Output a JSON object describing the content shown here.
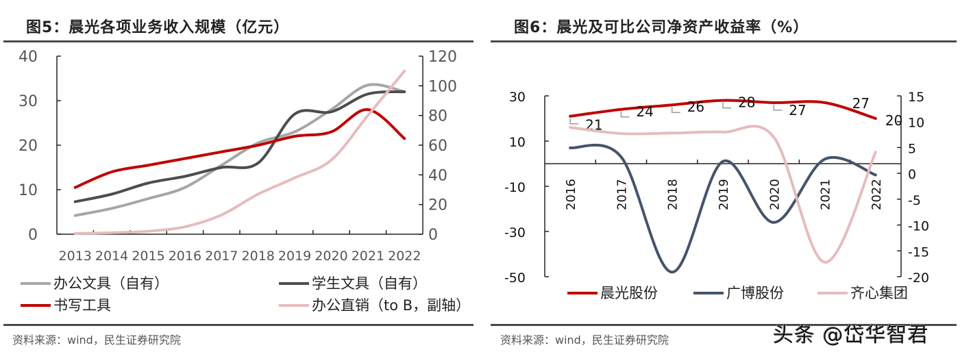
{
  "chart_data": [
    {
      "type": "line",
      "title": "图5：晨光各项业务收入规模（亿元）",
      "categories": [
        "2013",
        "2014",
        "2015",
        "2016",
        "2017",
        "2018",
        "2019",
        "2020",
        "2021",
        "2022"
      ],
      "y_left": {
        "range": [
          0,
          40
        ],
        "ticks": [
          "0",
          "10",
          "20",
          "30",
          "40"
        ]
      },
      "y_right": {
        "range": [
          0,
          120
        ],
        "ticks": [
          "0",
          "20",
          "40",
          "60",
          "80",
          "100",
          "120"
        ]
      },
      "grid": false,
      "legend_position": "bottom",
      "series": [
        {
          "name": "办公文具（自有）",
          "axis": "left",
          "color": "#a6a6a6",
          "values": [
            4.2,
            5.8,
            8.0,
            10.5,
            15.5,
            20.5,
            23.0,
            28.0,
            33.5,
            32.0
          ]
        },
        {
          "name": "学生文具（自有）",
          "axis": "left",
          "color": "#4d4d4d",
          "values": [
            7.3,
            9.0,
            11.5,
            13.0,
            15.0,
            16.0,
            27.0,
            27.5,
            31.5,
            32.0
          ]
        },
        {
          "name": "书写工具",
          "axis": "left",
          "color": "#c00000",
          "values": [
            10.5,
            14.0,
            15.5,
            17.0,
            18.5,
            20.0,
            22.0,
            23.0,
            28.0,
            21.5
          ]
        },
        {
          "name": "办公直销（to B，副轴）",
          "axis": "right",
          "color": "#e6bcbc",
          "values": [
            0.5,
            1.0,
            2.0,
            5.0,
            13.0,
            27.0,
            38.0,
            50.0,
            80.0,
            110.0
          ]
        }
      ],
      "source": "资料来源：wind，民生证券研究院"
    },
    {
      "type": "line",
      "title": "图6：晨光及可比公司净资产收益率（%）",
      "categories": [
        "2016",
        "2017",
        "2018",
        "2019",
        "2020",
        "2021",
        "2022"
      ],
      "y_left": {
        "range": [
          -50,
          30
        ],
        "ticks": [
          "-50",
          "-30",
          "-10",
          "10",
          "30"
        ]
      },
      "y_right": {
        "range": [
          -20,
          15
        ],
        "ticks": [
          "-20",
          "-15",
          "-10",
          "-5",
          "0",
          "5",
          "10",
          "15"
        ]
      },
      "grid": false,
      "legend_position": "bottom",
      "series": [
        {
          "name": "晨光股份",
          "axis": "left",
          "color": "#c00000",
          "values": [
            21,
            24,
            26,
            28,
            27,
            27,
            20
          ],
          "data_labels": [
            "21",
            "24",
            "26",
            "28",
            "27",
            "27",
            "20"
          ]
        },
        {
          "name": "广博股份",
          "axis": "left",
          "color": "#44546a",
          "values": [
            7,
            3,
            -48,
            1,
            -26,
            2,
            -5
          ]
        },
        {
          "name": "齐心集团",
          "axis": "right",
          "color": "#e6bcbc",
          "values": [
            8.9,
            7.7,
            7.8,
            8.0,
            7.0,
            -17.2,
            4.1
          ]
        }
      ],
      "source": "资料来源：wind，民生证券研究院"
    }
  ],
  "watermark": "头条 @岱华智君"
}
